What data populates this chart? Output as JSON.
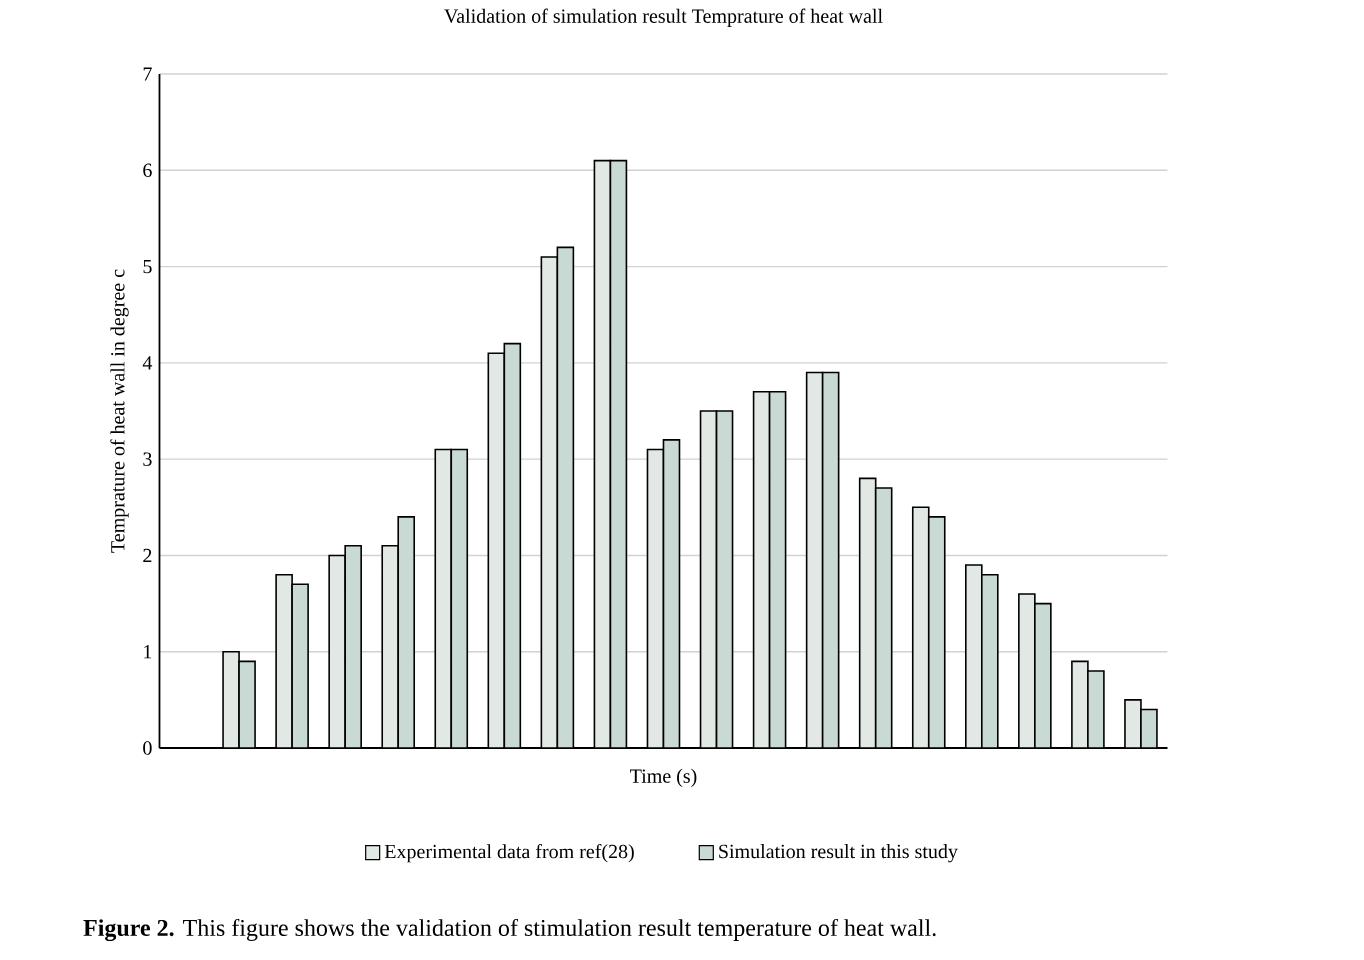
{
  "chart_data": {
    "type": "bar",
    "title": "Validation of simulation result Temprature of heat wall",
    "xlabel": "Time (s)",
    "ylabel": "Temprature of heat wall in degree c",
    "categories": [
      null,
      null,
      null,
      null,
      null,
      null,
      null,
      null,
      null,
      null,
      null,
      null,
      null,
      null,
      null,
      null,
      null,
      null,
      null
    ],
    "series": [
      {
        "name": "Experimental data from ref(28)",
        "color": "#e2e9e5",
        "values": [
          null,
          1.0,
          1.8,
          2.0,
          2.1,
          3.1,
          4.1,
          5.1,
          6.1,
          3.1,
          3.5,
          3.7,
          3.9,
          2.8,
          2.5,
          1.9,
          1.6,
          0.9,
          0.5
        ]
      },
      {
        "name": "Simulation result in this study",
        "color": "#c9d9d4",
        "values": [
          null,
          0.9,
          1.7,
          2.1,
          2.4,
          3.1,
          4.2,
          5.2,
          6.1,
          3.2,
          3.5,
          3.7,
          3.9,
          2.7,
          2.4,
          1.8,
          1.5,
          0.8,
          0.4
        ]
      }
    ],
    "ylim": [
      0,
      7
    ],
    "yticks": [
      0,
      1,
      2,
      3,
      4,
      5,
      6,
      7
    ],
    "grid": "y",
    "legend": "bottom",
    "tick_labels": "y",
    "annotations": [
      "**Figure 2.** This figure shows the validation of stimulation result temperature of heat wall."
    ]
  }
}
